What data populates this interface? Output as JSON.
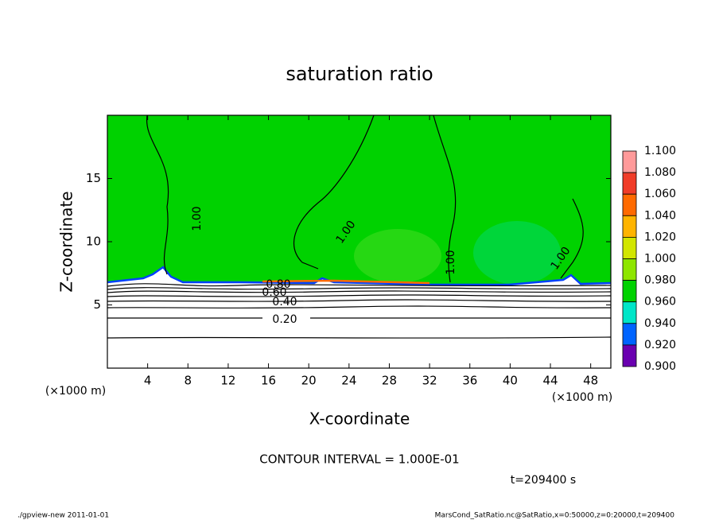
{
  "chart_data": {
    "type": "contour",
    "title": "saturation ratio",
    "xlabel": "X-coordinate",
    "ylabel": "Z-coordinate",
    "xunit_left": "(×1000 m)",
    "xunit_right": "(×1000 m)",
    "xlim": [
      0,
      50
    ],
    "ylim": [
      0,
      20
    ],
    "xticks": [
      4,
      8,
      12,
      16,
      20,
      24,
      28,
      32,
      36,
      40,
      44,
      48
    ],
    "yticks": [
      5,
      10,
      15
    ],
    "contour_labels": [
      "1.00",
      "1.00",
      "1.00",
      "1.00",
      "0.80",
      "0.60",
      "0.40",
      "0.20"
    ],
    "colorbar": {
      "levels": [
        {
          "value": 1.1,
          "label": "1.100"
        },
        {
          "value": 1.08,
          "label": "1.080"
        },
        {
          "value": 1.06,
          "label": "1.060"
        },
        {
          "value": 1.04,
          "label": "1.040"
        },
        {
          "value": 1.02,
          "label": "1.020"
        },
        {
          "value": 1.0,
          "label": "1.000"
        },
        {
          "value": 0.98,
          "label": "0.980"
        },
        {
          "value": 0.96,
          "label": "0.960"
        },
        {
          "value": 0.94,
          "label": "0.940"
        },
        {
          "value": 0.92,
          "label": "0.920"
        },
        {
          "value": 0.9,
          "label": "0.900"
        }
      ],
      "colors": [
        "#ff9a9a",
        "#f03c28",
        "#ff6a00",
        "#ffb400",
        "#d2e600",
        "#8ee600",
        "#00d200",
        "#00e6c8",
        "#0064ff",
        "#1400a0"
      ],
      "bottom_color": "#6a00b0"
    },
    "contour_interval": "CONTOUR INTERVAL = 1.000E-01",
    "time_label": "t=209400 s",
    "footer_left": "./gpview-new  2011-01-01",
    "footer_right": "MarsCond_SatRatio.nc@SatRatio,x=0:50000,z=0:20000,t=209400"
  }
}
